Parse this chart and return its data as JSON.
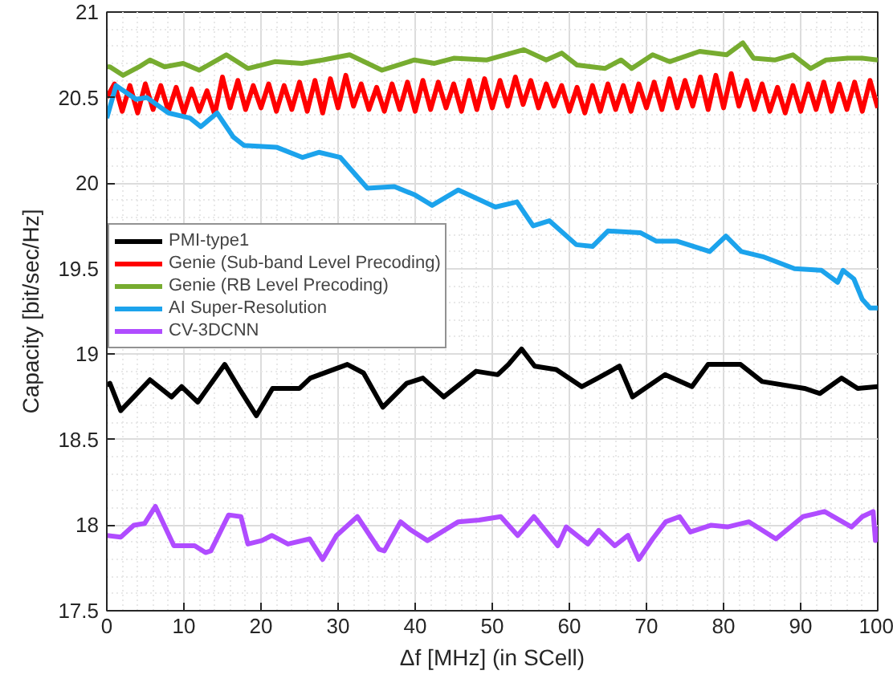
{
  "chart_data": {
    "type": "line",
    "xlabel": "Δf [MHz] (in SCell)",
    "ylabel": "Capacity [bit/sec/Hz]",
    "xlim": [
      0,
      100
    ],
    "ylim": [
      17.5,
      21
    ],
    "xticks": [
      0,
      10,
      20,
      30,
      40,
      50,
      60,
      70,
      80,
      90,
      100
    ],
    "yticks": [
      17.5,
      18,
      18.5,
      19,
      19.5,
      20,
      20.5,
      21
    ],
    "grid": true,
    "legend": "left",
    "line_style": "solid",
    "marker": "none",
    "series": [
      {
        "name": "PMI-type1",
        "color": "#000000",
        "x": [
          0,
          0.4,
          1.8,
          3.5,
          5.6,
          8.4,
          9.7,
          11.8,
          15.3,
          17.3,
          19.4,
          21.5,
          25,
          26.4,
          31.2,
          33.3,
          35.8,
          38.9,
          41,
          43.7,
          47.9,
          50.7,
          52.1,
          53.8,
          55.5,
          58.3,
          61.6,
          63.7,
          66.5,
          68.2,
          72.4,
          75.9,
          78,
          82.2,
          85,
          90.5,
          92.5,
          95.3,
          97.4,
          100
        ],
        "values": [
          18.82,
          18.83,
          18.67,
          18.75,
          18.85,
          18.75,
          18.81,
          18.72,
          18.94,
          18.79,
          18.64,
          18.8,
          18.8,
          18.86,
          18.94,
          18.89,
          18.69,
          18.83,
          18.86,
          18.75,
          18.9,
          18.88,
          18.94,
          19.03,
          18.93,
          18.91,
          18.81,
          18.86,
          18.93,
          18.75,
          18.88,
          18.81,
          18.94,
          18.94,
          18.84,
          18.8,
          18.77,
          18.86,
          18.8,
          18.81
        ]
      },
      {
        "name": "Genie (Sub-band Level Precoding)",
        "color": "#ff0000",
        "x": [
          0,
          1,
          2,
          3,
          4,
          5,
          6,
          7,
          8,
          9,
          10,
          11,
          12,
          13,
          14,
          15,
          16,
          17,
          18,
          19,
          20,
          21,
          22,
          23,
          24,
          25,
          26,
          27,
          28,
          29,
          30,
          31,
          32,
          33,
          34,
          35,
          36,
          37,
          38,
          39,
          40,
          41,
          42,
          43,
          44,
          45,
          46,
          47,
          48,
          49,
          50,
          51,
          52,
          53,
          54,
          55,
          56,
          57,
          58,
          59,
          60,
          61,
          62,
          63,
          64,
          65,
          66,
          67,
          68,
          69,
          70,
          71,
          72,
          73,
          74,
          75,
          76,
          77,
          78,
          79,
          80,
          81,
          82,
          83,
          84,
          85,
          86,
          87,
          88,
          89,
          90,
          91,
          92,
          93,
          94,
          95,
          96,
          97,
          98,
          99,
          100
        ],
        "values": [
          20.5,
          20.58,
          20.42,
          20.57,
          20.41,
          20.58,
          20.43,
          20.57,
          20.42,
          20.56,
          20.41,
          20.55,
          20.42,
          20.54,
          20.4,
          20.62,
          20.44,
          20.6,
          20.43,
          20.57,
          20.44,
          20.58,
          20.42,
          20.57,
          20.43,
          20.59,
          20.42,
          20.6,
          20.41,
          20.61,
          20.44,
          20.63,
          20.45,
          20.58,
          20.43,
          20.56,
          20.42,
          20.58,
          20.43,
          20.59,
          20.42,
          20.6,
          20.43,
          20.59,
          20.44,
          20.58,
          20.42,
          20.6,
          20.43,
          20.61,
          20.44,
          20.6,
          20.45,
          20.62,
          20.46,
          20.6,
          20.44,
          20.58,
          20.45,
          20.57,
          20.42,
          20.56,
          20.41,
          20.57,
          20.42,
          20.58,
          20.43,
          20.57,
          20.42,
          20.58,
          20.44,
          20.59,
          20.43,
          20.61,
          20.44,
          20.6,
          20.45,
          20.62,
          20.43,
          20.63,
          20.44,
          20.64,
          20.45,
          20.6,
          20.43,
          20.58,
          20.42,
          20.56,
          20.41,
          20.57,
          20.42,
          20.58,
          20.43,
          20.59,
          20.42,
          20.58,
          20.43,
          20.59,
          20.42,
          20.6,
          20.44
        ]
      },
      {
        "name": "Genie (RB Level Precoding)",
        "color": "#77ac30",
        "x": [
          0,
          0.4,
          2.1,
          4.2,
          5.6,
          7.5,
          9.9,
          12,
          15.5,
          18.3,
          21.8,
          25.3,
          28,
          31.5,
          35.7,
          39.9,
          42.5,
          45,
          49.3,
          54.1,
          57,
          59,
          61,
          64.6,
          66.7,
          68.1,
          70.8,
          73,
          76.9,
          80.4,
          82.5,
          83.9,
          86.7,
          89,
          91.3,
          93.3,
          96.1,
          98,
          100
        ],
        "values": [
          20.68,
          20.68,
          20.63,
          20.68,
          20.72,
          20.68,
          20.7,
          20.66,
          20.75,
          20.67,
          20.71,
          20.7,
          20.72,
          20.75,
          20.66,
          20.72,
          20.7,
          20.73,
          20.72,
          20.78,
          20.72,
          20.76,
          20.69,
          20.67,
          20.72,
          20.67,
          20.75,
          20.71,
          20.77,
          20.75,
          20.82,
          20.73,
          20.72,
          20.75,
          20.67,
          20.72,
          20.73,
          20.73,
          20.72
        ]
      },
      {
        "name": "AI Super-Resolution",
        "color": "#1ca3ec",
        "x": [
          0,
          1.2,
          3.8,
          5.2,
          8,
          10.8,
          12.2,
          14.3,
          16.4,
          17.8,
          22,
          25.4,
          27.5,
          30.3,
          33.8,
          37.3,
          40,
          42.2,
          45.6,
          50.4,
          53.2,
          55.3,
          57.4,
          60.9,
          63,
          65,
          69.2,
          71.3,
          74,
          78.2,
          80.3,
          82.3,
          85.1,
          89.2,
          92.7,
          94.8,
          95.5,
          96.9,
          98,
          99,
          100
        ],
        "values": [
          20.38,
          20.57,
          20.49,
          20.5,
          20.41,
          20.38,
          20.33,
          20.41,
          20.27,
          20.22,
          20.21,
          20.15,
          20.18,
          20.15,
          19.97,
          19.98,
          19.93,
          19.87,
          19.96,
          19.86,
          19.89,
          19.75,
          19.78,
          19.64,
          19.63,
          19.72,
          19.71,
          19.66,
          19.66,
          19.6,
          19.69,
          19.6,
          19.57,
          19.5,
          19.49,
          19.42,
          19.49,
          19.44,
          19.32,
          19.27,
          19.27
        ]
      },
      {
        "name": "CV-3DCNN",
        "color": "#b04cff",
        "x": [
          0,
          1.8,
          3.5,
          4.9,
          6.3,
          8.7,
          11.4,
          12.8,
          13.5,
          15.8,
          17.4,
          18.3,
          20.1,
          21.4,
          23.5,
          26.3,
          28,
          29.8,
          32.5,
          35.3,
          36,
          38.1,
          39.5,
          41.6,
          45.6,
          48.3,
          51.1,
          53.3,
          55.4,
          58.5,
          59.6,
          62.4,
          63.8,
          65.9,
          67.6,
          69,
          70.8,
          72.5,
          74.3,
          75.7,
          78.4,
          80.5,
          83.3,
          86.8,
          90.3,
          93.1,
          96.6,
          98,
          99.4,
          99.7,
          100
        ],
        "values": [
          17.94,
          17.93,
          18.0,
          18.01,
          18.11,
          17.88,
          17.88,
          17.84,
          17.85,
          18.06,
          18.05,
          17.89,
          17.91,
          17.94,
          17.89,
          17.92,
          17.8,
          17.94,
          18.05,
          17.86,
          17.85,
          18.02,
          17.97,
          17.91,
          18.02,
          18.03,
          18.05,
          17.94,
          18.05,
          17.88,
          17.99,
          17.89,
          17.97,
          17.88,
          17.94,
          17.8,
          17.92,
          18.02,
          18.05,
          17.96,
          18.0,
          17.99,
          18.02,
          17.92,
          18.05,
          18.08,
          17.99,
          18.05,
          18.08,
          17.91,
          17.99
        ]
      }
    ]
  }
}
